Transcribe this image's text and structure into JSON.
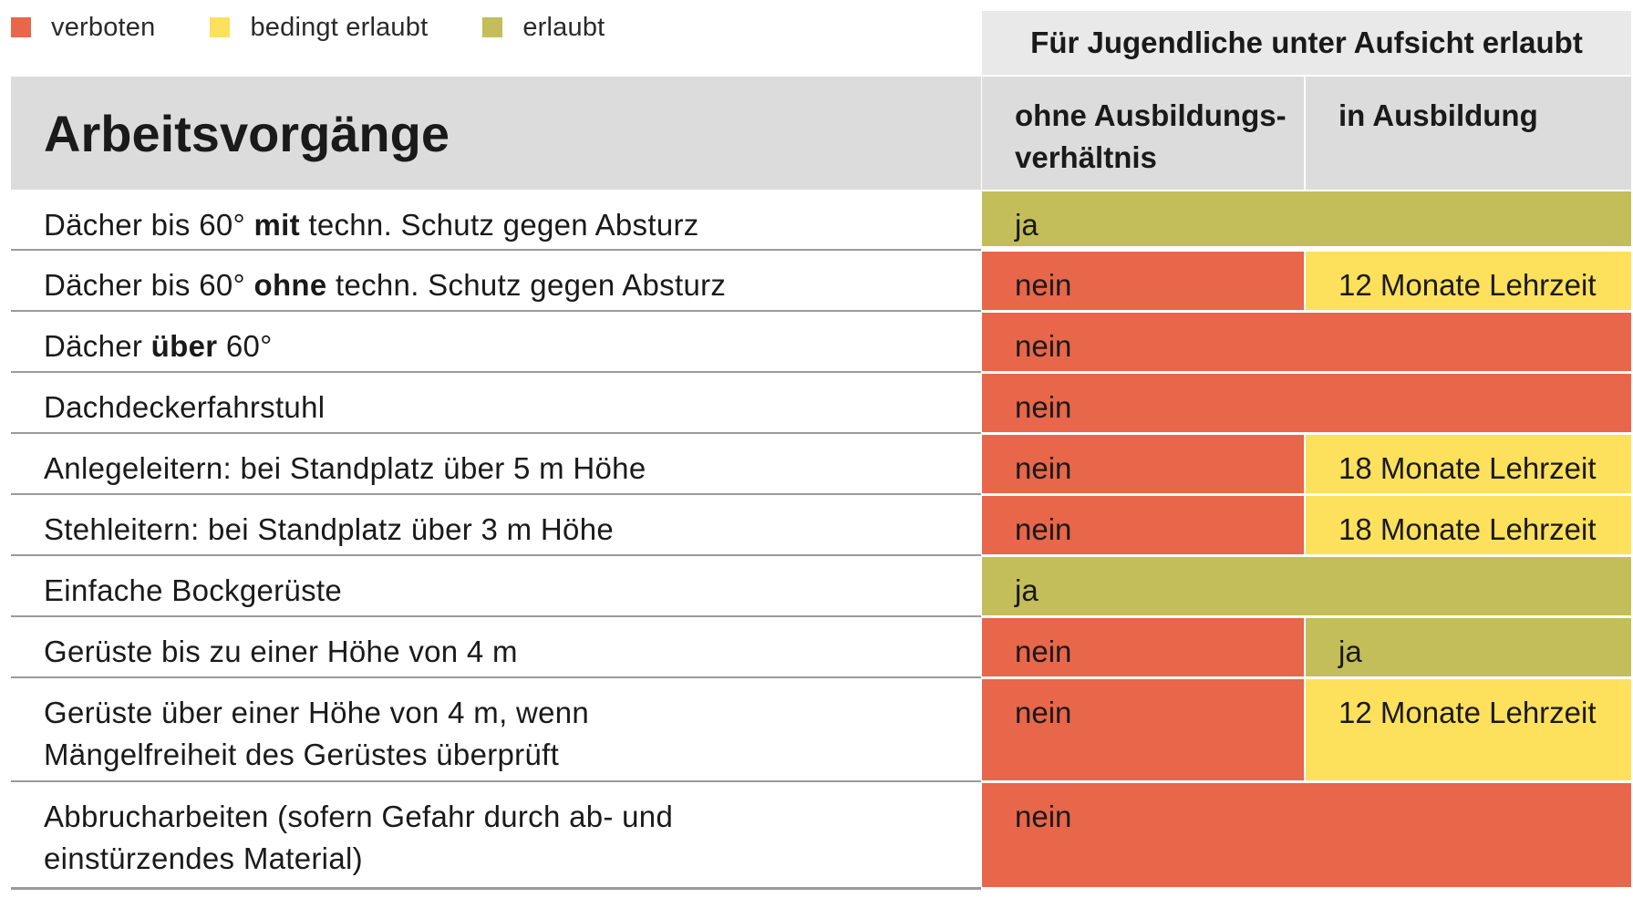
{
  "legend": [
    {
      "label": "verboten",
      "color": "#e8664a"
    },
    {
      "label": "bedingt erlaubt",
      "color": "#fde05c"
    },
    {
      "label": "erlaubt",
      "color": "#c3bd5a"
    }
  ],
  "header": {
    "group_title": "Für Jugendliche unter Aufsicht erlaubt",
    "title": "Arbeitsvorgänge",
    "col_a_line1": "ohne Ausbildungs-",
    "col_a_line2": "verhältnis",
    "col_b": "in Ausbildung"
  },
  "rows": [
    {
      "pre": "Dächer bis 60° ",
      "bold": "mit",
      "post": " techn. Schutz gegen Absturz",
      "a": "ja",
      "b": ""
    },
    {
      "pre": "Dächer bis 60° ",
      "bold": "ohne",
      "post": " techn. Schutz gegen Absturz",
      "a": "nein",
      "b": "12 Monate Lehrzeit"
    },
    {
      "pre": "Dächer ",
      "bold": "über",
      "post": " 60°",
      "a": "nein",
      "b": ""
    },
    {
      "pre": "Dachdeckerfahrstuhl",
      "bold": "",
      "post": "",
      "a": "nein",
      "b": ""
    },
    {
      "pre": "Anlegeleitern: bei Standplatz über 5 m Höhe",
      "bold": "",
      "post": "",
      "a": "nein",
      "b": "18 Monate Lehrzeit"
    },
    {
      "pre": "Stehleitern: bei Standplatz über 3 m Höhe",
      "bold": "",
      "post": "",
      "a": "nein",
      "b": "18 Monate Lehrzeit"
    },
    {
      "pre": "Einfache Bockgerüste",
      "bold": "",
      "post": "",
      "a": "ja",
      "b": ""
    },
    {
      "pre": "Gerüste bis zu einer Höhe von 4 m",
      "bold": "",
      "post": "",
      "a": "nein",
      "b": "ja"
    },
    {
      "pre": "Gerüste über einer Höhe von 4 m, wenn Mängelfreiheit des Gerüstes überprüft",
      "bold": "",
      "post": "",
      "a": "nein",
      "b": "12 Monate Lehrzeit"
    },
    {
      "pre": "Abbrucharbeiten (sofern Gefahr durch ab- und einstürzendes Material)",
      "bold": "",
      "post": "",
      "a": "nein",
      "b": ""
    }
  ]
}
